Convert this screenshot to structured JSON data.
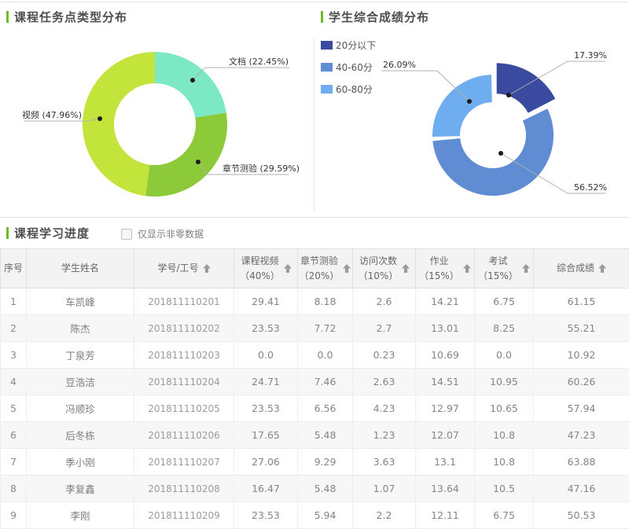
{
  "theme": {
    "accent_green": "#6eb92d",
    "divider_gray": "#e4e4e4",
    "sort_arrow_gray": "#9b9b9b"
  },
  "chart_data": [
    {
      "type": "pie",
      "donut": true,
      "title": "课程任务点类型分布",
      "slices": [
        {
          "label": "文档",
          "value": 22.45,
          "display": "文档 (22.45%)",
          "color": "#7de9c4"
        },
        {
          "label": "章节测验",
          "value": 29.59,
          "display": "章节测验 (29.59%)",
          "color": "#8cca3a"
        },
        {
          "label": "视频",
          "value": 47.96,
          "display": "视频 (47.96%)",
          "color": "#c3e43a"
        }
      ],
      "legend_position": "none"
    },
    {
      "type": "pie",
      "donut": true,
      "title": "学生综合成绩分布",
      "slices": [
        {
          "label": "20分以下",
          "value": 17.39,
          "display": "17.39%",
          "color": "#3a4a9e",
          "exploded": true
        },
        {
          "label": "40-60分",
          "value": 56.52,
          "display": "56.52%",
          "color": "#5f8cd3",
          "exploded": false
        },
        {
          "label": "60-80分",
          "value": 26.09,
          "display": "26.09%",
          "color": "#6fadf1",
          "exploded": false
        }
      ],
      "legend": [
        "20分以下",
        "40-60分",
        "60-80分"
      ],
      "legend_position": "top-left"
    }
  ],
  "table": {
    "title": "课程学习进度",
    "filter_label": "仅显示非零数据",
    "checkbox_checked": false,
    "columns": [
      {
        "label": "序号",
        "sub": "",
        "sortable": false
      },
      {
        "label": "学生姓名",
        "sub": "",
        "sortable": false
      },
      {
        "label": "学号/工号",
        "sub": "",
        "sortable": true
      },
      {
        "label": "课程视频",
        "sub": "（40%）",
        "sortable": true
      },
      {
        "label": "章节测验",
        "sub": "（20%）",
        "sortable": true
      },
      {
        "label": "访问次数",
        "sub": "（10%）",
        "sortable": true
      },
      {
        "label": "作业",
        "sub": "（15%）",
        "sortable": true
      },
      {
        "label": "考试",
        "sub": "（15%）",
        "sortable": true
      },
      {
        "label": "综合成绩",
        "sub": "",
        "sortable": true
      }
    ],
    "rows": [
      [
        "1",
        "车凯峰",
        "201811110201",
        "29.41",
        "8.18",
        "2.6",
        "14.21",
        "6.75",
        "61.15"
      ],
      [
        "2",
        "陈杰",
        "201811110202",
        "23.53",
        "7.72",
        "2.7",
        "13.01",
        "8.25",
        "55.21"
      ],
      [
        "3",
        "丁泉芳",
        "201811110203",
        "0.0",
        "0.0",
        "0.23",
        "10.69",
        "0.0",
        "10.92"
      ],
      [
        "4",
        "豆浩洁",
        "201811110204",
        "24.71",
        "7.46",
        "2.63",
        "14.51",
        "10.95",
        "60.26"
      ],
      [
        "5",
        "冯顺珍",
        "201811110205",
        "23.53",
        "6.56",
        "4.23",
        "12.97",
        "10.65",
        "57.94"
      ],
      [
        "6",
        "后冬栋",
        "201811110206",
        "17.65",
        "5.48",
        "1.23",
        "12.07",
        "10.8",
        "47.23"
      ],
      [
        "7",
        "季小刚",
        "201811110207",
        "27.06",
        "9.29",
        "3.63",
        "13.1",
        "10.8",
        "63.88"
      ],
      [
        "8",
        "李复鑫",
        "201811110208",
        "16.47",
        "5.48",
        "1.07",
        "13.64",
        "10.5",
        "47.16"
      ],
      [
        "9",
        "李刚",
        "201811110209",
        "23.53",
        "5.94",
        "2.2",
        "12.11",
        "6.75",
        "50.53"
      ]
    ]
  }
}
